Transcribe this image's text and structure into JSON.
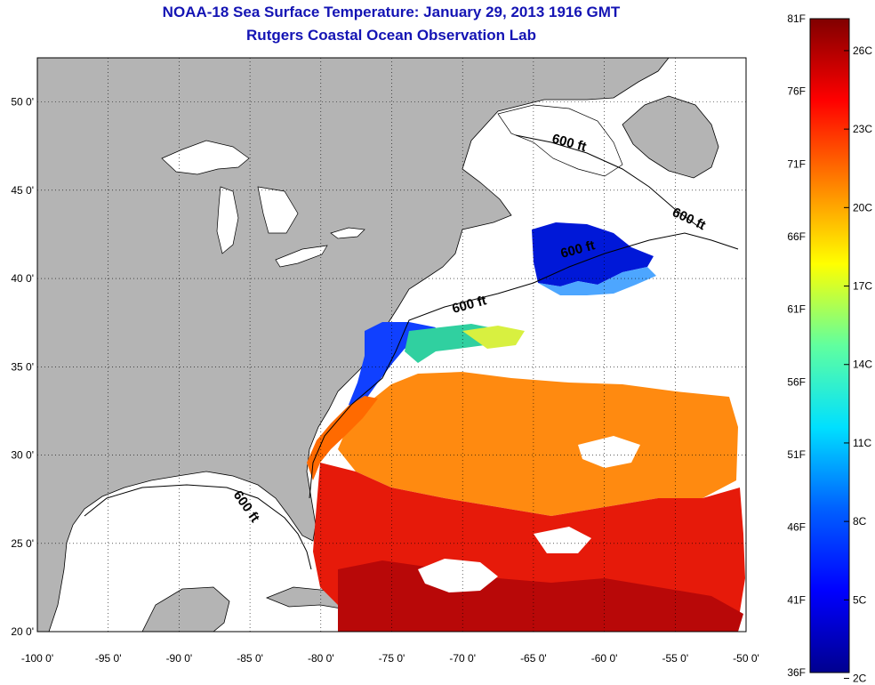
{
  "title": {
    "line1": "NOAA-18 Sea Surface Temperature:  January 29, 2013 1916 GMT",
    "line2": "Rutgers Coastal Ocean Observation Lab"
  },
  "map": {
    "lon_range": [
      -100,
      -50
    ],
    "lat_range": [
      20,
      52.5
    ],
    "grid": "dotted",
    "land_color": "#b4b4b4",
    "no_data_color": "#ffffff",
    "lon_ticks": [
      "-100 0'",
      "-95 0'",
      "-90 0'",
      "-85 0'",
      "-80 0'",
      "-75 0'",
      "-70 0'",
      "-65 0'",
      "-60 0'",
      "-55 0'",
      "-50 0'"
    ],
    "lat_ticks": [
      "20 0'",
      "25 0'",
      "30 0'",
      "35 0'",
      "40 0'",
      "45 0'",
      "50 0'"
    ],
    "isobath_labels": [
      "600 ft",
      "600 ft",
      "600 ft",
      "600 ft",
      "600 ft"
    ]
  },
  "colorbar": {
    "left_labels": [
      "36F",
      "41F",
      "46F",
      "51F",
      "56F",
      "61F",
      "66F",
      "71F",
      "76F",
      "81F"
    ],
    "right_labels": [
      "2C",
      "5C",
      "8C",
      "11C",
      "14C",
      "17C",
      "20C",
      "23C",
      "26C"
    ],
    "colors": [
      "#00008f",
      "#0000ff",
      "#0080ff",
      "#00ffff",
      "#80ff80",
      "#ffff00",
      "#ff8000",
      "#ff0000",
      "#800000"
    ]
  }
}
